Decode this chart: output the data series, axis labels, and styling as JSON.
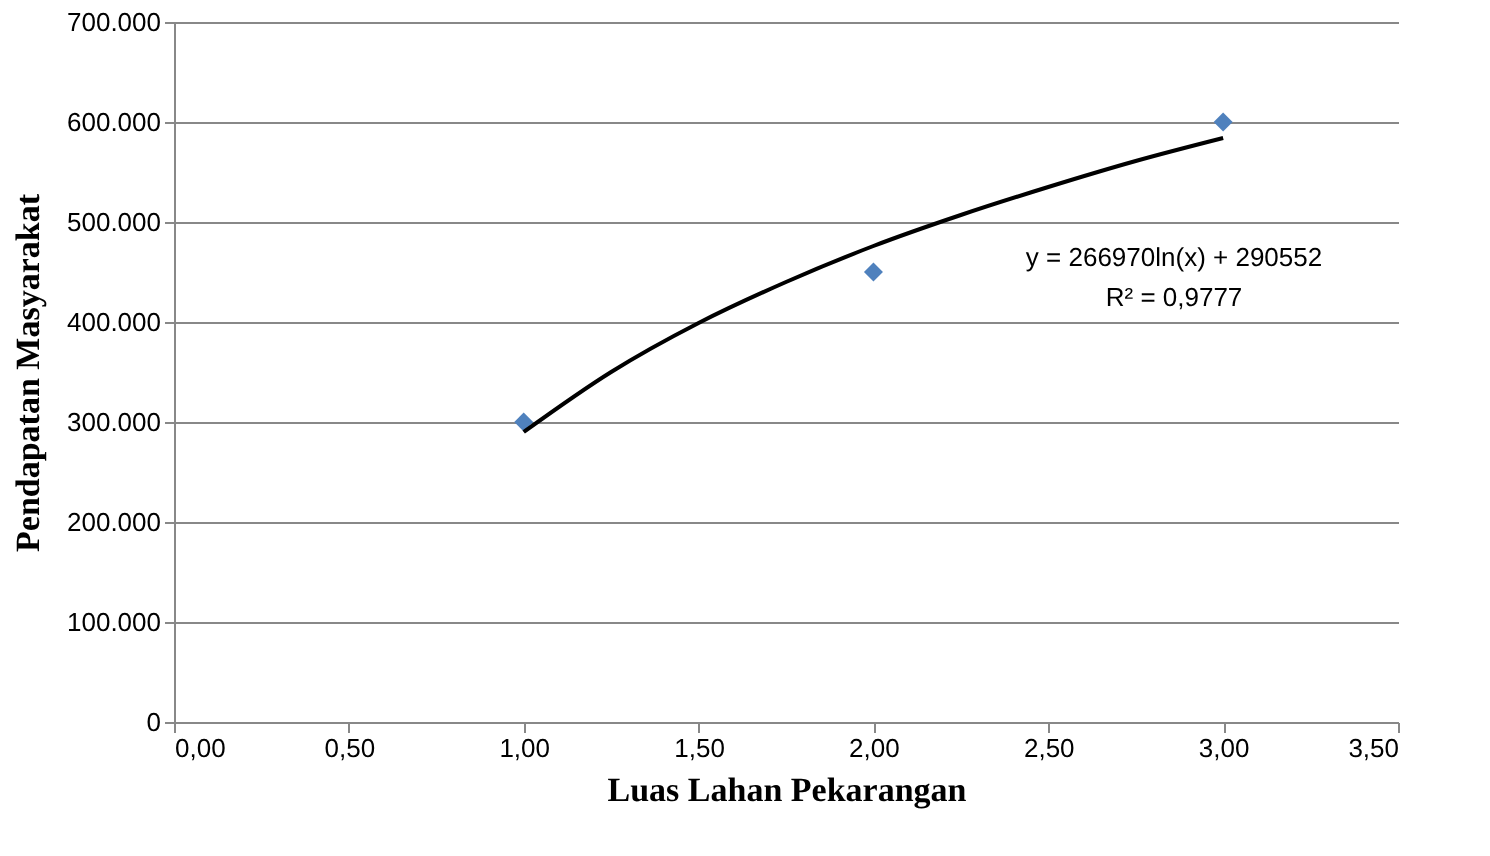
{
  "chart_data": {
    "type": "scatter",
    "xlabel": "Luas Lahan Pekarangan",
    "ylabel": "Pendapatan Masyarakat",
    "xlim": [
      0,
      3.5
    ],
    "xticks": [
      {
        "value": 0,
        "label": "0,00"
      },
      {
        "value": 0.5,
        "label": "0,50"
      },
      {
        "value": 1,
        "label": "1,00"
      },
      {
        "value": 1.5,
        "label": "1,50"
      },
      {
        "value": 2,
        "label": "2,00"
      },
      {
        "value": 2.5,
        "label": "2,50"
      },
      {
        "value": 3,
        "label": "3,00"
      },
      {
        "value": 3.5,
        "label": "3,50"
      }
    ],
    "ylim": [
      0,
      700000
    ],
    "yticks": [
      0,
      {
        "value": 100000,
        "label": "100.000"
      },
      {
        "value": 200000,
        "label": "200.000"
      },
      {
        "value": 300000,
        "label": "300.000"
      },
      {
        "value": 400000,
        "label": "400.000"
      },
      {
        "value": 500000,
        "label": "500.000"
      },
      {
        "value": 600000,
        "label": "600.000"
      },
      {
        "value": 700000,
        "label": "700.000"
      }
    ],
    "grid": "y",
    "series": [
      {
        "marker": "diamond",
        "color": "#4f81bd",
        "x": [
          1,
          2,
          3
        ],
        "values": [
          300000,
          450000,
          600000
        ]
      },
      {
        "type": "line",
        "marker": "none",
        "line_style": "solid",
        "color": "#000000",
        "x": [
          1,
          1.25,
          1.5,
          1.75,
          2,
          2.25,
          2.5,
          2.75,
          3
        ],
        "values": [
          290000,
          350000,
          399000,
          440000,
          476000,
          507000,
          535000,
          561000,
          584000
        ]
      }
    ],
    "annotations": [
      "y = 266970ln(x) + 290552",
      "R² = 0,9777"
    ]
  }
}
